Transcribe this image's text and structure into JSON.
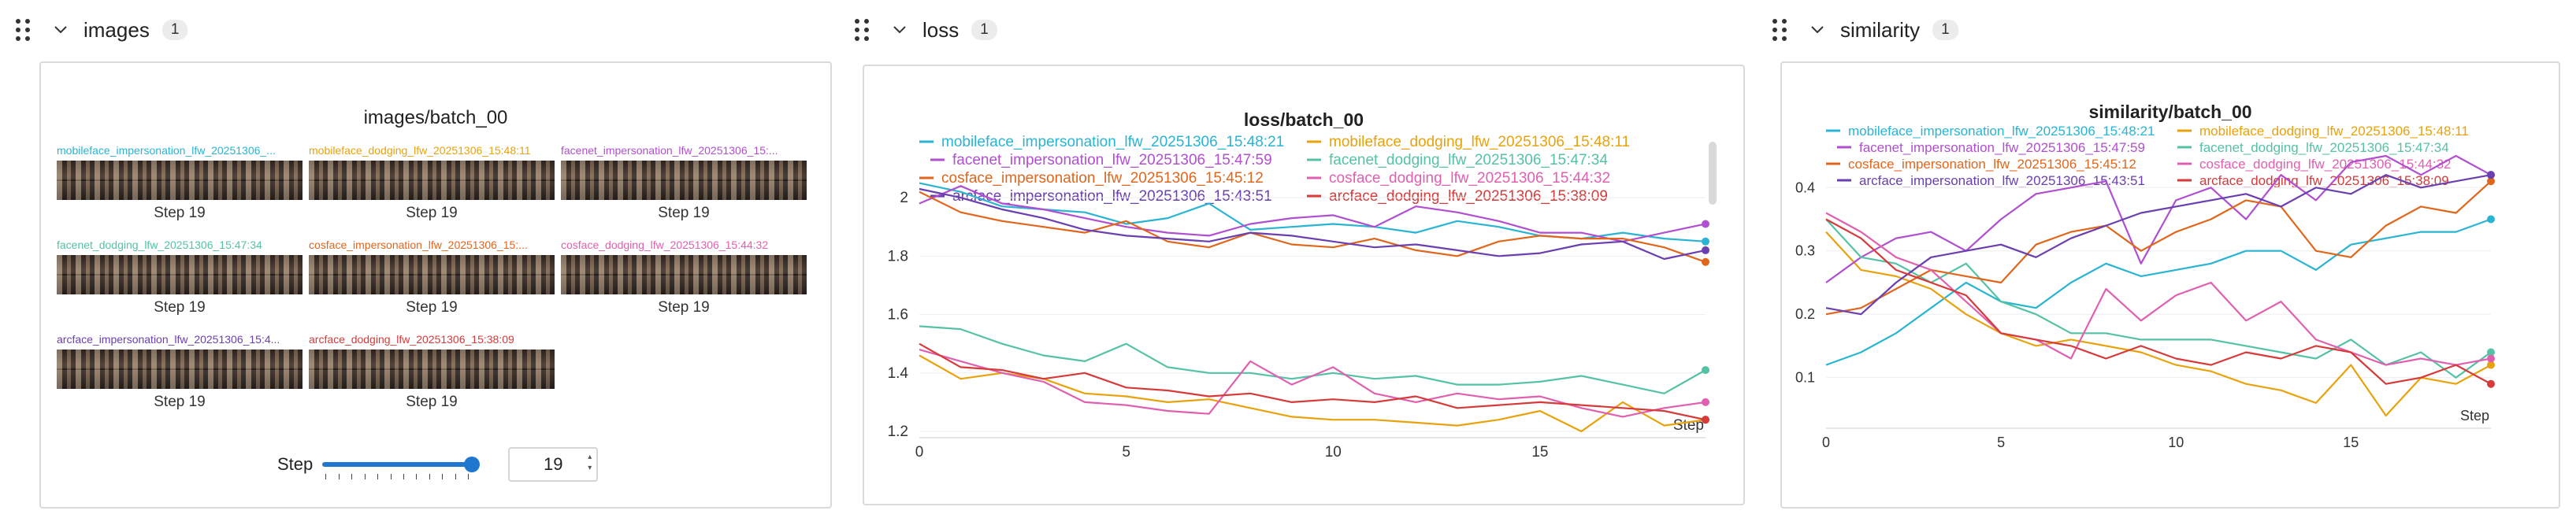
{
  "sections": [
    {
      "title": "images",
      "count": "1"
    },
    {
      "title": "loss",
      "count": "1"
    },
    {
      "title": "similarity",
      "count": "1"
    }
  ],
  "images_panel": {
    "title": "images/batch_00",
    "cells": [
      {
        "label": "mobileface_impersonation_lfw_20251306_...",
        "color": "#28b4d2",
        "step": "Step 19"
      },
      {
        "label": "mobileface_dodging_lfw_20251306_15:48:11",
        "color": "#e8a20c",
        "step": "Step 19"
      },
      {
        "label": "facenet_impersonation_lfw_20251306_15:...",
        "color": "#b04fd0",
        "step": "Step 19"
      },
      {
        "label": "facenet_dodging_lfw_20251306_15:47:34",
        "color": "#55c2a5",
        "step": "Step 19"
      },
      {
        "label": "cosface_impersonation_lfw_20251306_15:...",
        "color": "#e0661c",
        "step": "Step 19"
      },
      {
        "label": "cosface_dodging_lfw_20251306_15:44:32",
        "color": "#e060b0",
        "step": "Step 19"
      },
      {
        "label": "arcface_impersonation_lfw_20251306_15:4...",
        "color": "#6a3fb0",
        "step": "Step 19"
      },
      {
        "label": "arcface_dodging_lfw_20251306_15:38:09",
        "color": "#d63a3a",
        "step": "Step 19"
      }
    ],
    "slider": {
      "label": "Step",
      "value": "19",
      "min": 0,
      "max": 19,
      "current": 19
    }
  },
  "series_names": [
    {
      "name": "mobileface_impersonation_lfw_20251306_15:48:21",
      "color": "#28b4d2"
    },
    {
      "name": "mobileface_dodging_lfw_20251306_15:48:11",
      "color": "#e8a20c"
    },
    {
      "name": "facenet_impersonation_lfw_20251306_15:47:59",
      "color": "#b04fd0"
    },
    {
      "name": "facenet_dodging_lfw_20251306_15:47:34",
      "color": "#55c2a5"
    },
    {
      "name": "cosface_impersonation_lfw_20251306_15:45:12",
      "color": "#e0661c"
    },
    {
      "name": "cosface_dodging_lfw_20251306_15:44:32",
      "color": "#e060b0"
    },
    {
      "name": "arcface_impersonation_lfw_20251306_15:43:51",
      "color": "#6a3fb0"
    },
    {
      "name": "arcface_dodging_lfw_20251306_15:38:09",
      "color": "#d63a3a"
    }
  ],
  "chart_data": [
    {
      "type": "line",
      "title": "loss/batch_00",
      "xlabel": "Step",
      "xlim": [
        0,
        19
      ],
      "ylim": [
        1.2,
        2.1
      ],
      "xticks": [
        "0",
        "5",
        "10",
        "15"
      ],
      "yticks": [
        "1.2",
        "1.4",
        "1.6",
        "1.8",
        "2"
      ],
      "legend": "top",
      "series": [
        {
          "name": "mobileface_impersonation_lfw_20251306_15:48:21",
          "values": [
            2.05,
            2.02,
            1.97,
            1.96,
            1.95,
            1.91,
            1.93,
            1.98,
            1.89,
            1.9,
            1.91,
            1.9,
            1.88,
            1.92,
            1.9,
            1.87,
            1.86,
            1.88,
            1.86,
            1.85
          ]
        },
        {
          "name": "mobileface_dodging_lfw_20251306_15:48:11",
          "values": [
            1.46,
            1.38,
            1.4,
            1.38,
            1.33,
            1.32,
            1.3,
            1.31,
            1.28,
            1.25,
            1.24,
            1.24,
            1.23,
            1.22,
            1.24,
            1.27,
            1.2,
            1.3,
            1.22,
            1.24
          ]
        },
        {
          "name": "facenet_impersonation_lfw_20251306_15:47:59",
          "values": [
            1.98,
            2.04,
            1.98,
            1.96,
            1.93,
            1.9,
            1.88,
            1.87,
            1.91,
            1.93,
            1.94,
            1.9,
            1.97,
            1.95,
            1.92,
            1.88,
            1.88,
            1.85,
            1.88,
            1.91
          ]
        },
        {
          "name": "facenet_dodging_lfw_20251306_15:47:34",
          "values": [
            1.56,
            1.55,
            1.5,
            1.46,
            1.44,
            1.5,
            1.42,
            1.4,
            1.4,
            1.38,
            1.4,
            1.38,
            1.39,
            1.36,
            1.36,
            1.37,
            1.39,
            1.36,
            1.33,
            1.41
          ]
        },
        {
          "name": "cosface_impersonation_lfw_20251306_15:45:12",
          "values": [
            2.02,
            1.95,
            1.92,
            1.9,
            1.88,
            1.92,
            1.85,
            1.83,
            1.88,
            1.84,
            1.83,
            1.86,
            1.82,
            1.8,
            1.85,
            1.87,
            1.86,
            1.86,
            1.83,
            1.78
          ]
        },
        {
          "name": "cosface_dodging_lfw_20251306_15:44:32",
          "values": [
            1.48,
            1.44,
            1.4,
            1.37,
            1.3,
            1.29,
            1.27,
            1.26,
            1.44,
            1.36,
            1.42,
            1.33,
            1.3,
            1.33,
            1.31,
            1.32,
            1.28,
            1.25,
            1.28,
            1.3
          ]
        },
        {
          "name": "arcface_impersonation_lfw_20251306_15:43:51",
          "values": [
            2.03,
            2.0,
            1.96,
            1.93,
            1.89,
            1.87,
            1.86,
            1.85,
            1.88,
            1.87,
            1.85,
            1.83,
            1.84,
            1.82,
            1.8,
            1.81,
            1.84,
            1.85,
            1.79,
            1.82
          ]
        },
        {
          "name": "arcface_dodging_lfw_20251306_15:38:09",
          "values": [
            1.5,
            1.42,
            1.41,
            1.38,
            1.4,
            1.35,
            1.34,
            1.32,
            1.33,
            1.3,
            1.31,
            1.3,
            1.32,
            1.28,
            1.29,
            1.3,
            1.29,
            1.28,
            1.27,
            1.24
          ]
        }
      ]
    },
    {
      "type": "line",
      "title": "similarity/batch_00",
      "xlabel": "Step",
      "xlim": [
        0,
        19
      ],
      "ylim": [
        0.03,
        0.46
      ],
      "xticks": [
        "0",
        "5",
        "10",
        "15"
      ],
      "yticks": [
        "0.1",
        "0.2",
        "0.3",
        "0.4"
      ],
      "legend": "top",
      "series": [
        {
          "name": "mobileface_impersonation_lfw_20251306_15:48:21",
          "values": [
            0.12,
            0.14,
            0.17,
            0.21,
            0.25,
            0.22,
            0.21,
            0.25,
            0.28,
            0.26,
            0.27,
            0.28,
            0.3,
            0.3,
            0.27,
            0.31,
            0.32,
            0.33,
            0.33,
            0.35
          ]
        },
        {
          "name": "mobileface_dodging_lfw_20251306_15:48:11",
          "values": [
            0.33,
            0.27,
            0.26,
            0.24,
            0.2,
            0.17,
            0.15,
            0.16,
            0.15,
            0.14,
            0.12,
            0.11,
            0.09,
            0.08,
            0.06,
            0.12,
            0.04,
            0.1,
            0.09,
            0.12
          ]
        },
        {
          "name": "facenet_impersonation_lfw_20251306_15:47:59",
          "values": [
            0.25,
            0.29,
            0.32,
            0.33,
            0.3,
            0.35,
            0.39,
            0.4,
            0.41,
            0.28,
            0.38,
            0.4,
            0.35,
            0.42,
            0.38,
            0.44,
            0.45,
            0.42,
            0.45,
            0.42
          ]
        },
        {
          "name": "facenet_dodging_lfw_20251306_15:47:34",
          "values": [
            0.35,
            0.29,
            0.28,
            0.25,
            0.28,
            0.22,
            0.2,
            0.17,
            0.17,
            0.16,
            0.16,
            0.16,
            0.15,
            0.14,
            0.13,
            0.16,
            0.12,
            0.14,
            0.1,
            0.14
          ]
        },
        {
          "name": "cosface_impersonation_lfw_20251306_15:45:12",
          "values": [
            0.2,
            0.21,
            0.24,
            0.27,
            0.26,
            0.25,
            0.31,
            0.33,
            0.34,
            0.3,
            0.33,
            0.35,
            0.38,
            0.37,
            0.3,
            0.29,
            0.34,
            0.37,
            0.36,
            0.41
          ]
        },
        {
          "name": "cosface_dodging_lfw_20251306_15:44:32",
          "values": [
            0.36,
            0.33,
            0.29,
            0.27,
            0.22,
            0.17,
            0.16,
            0.13,
            0.24,
            0.19,
            0.23,
            0.25,
            0.19,
            0.22,
            0.16,
            0.14,
            0.12,
            0.13,
            0.12,
            0.13
          ]
        },
        {
          "name": "arcface_impersonation_lfw_20251306_15:43:51",
          "values": [
            0.21,
            0.2,
            0.25,
            0.29,
            0.3,
            0.31,
            0.29,
            0.32,
            0.34,
            0.36,
            0.37,
            0.38,
            0.39,
            0.37,
            0.4,
            0.39,
            0.42,
            0.4,
            0.41,
            0.42
          ]
        },
        {
          "name": "arcface_dodging_lfw_20251306_15:38:09",
          "values": [
            0.35,
            0.32,
            0.27,
            0.25,
            0.23,
            0.17,
            0.16,
            0.15,
            0.13,
            0.15,
            0.13,
            0.12,
            0.14,
            0.13,
            0.15,
            0.14,
            0.09,
            0.1,
            0.12,
            0.09
          ]
        }
      ]
    }
  ]
}
